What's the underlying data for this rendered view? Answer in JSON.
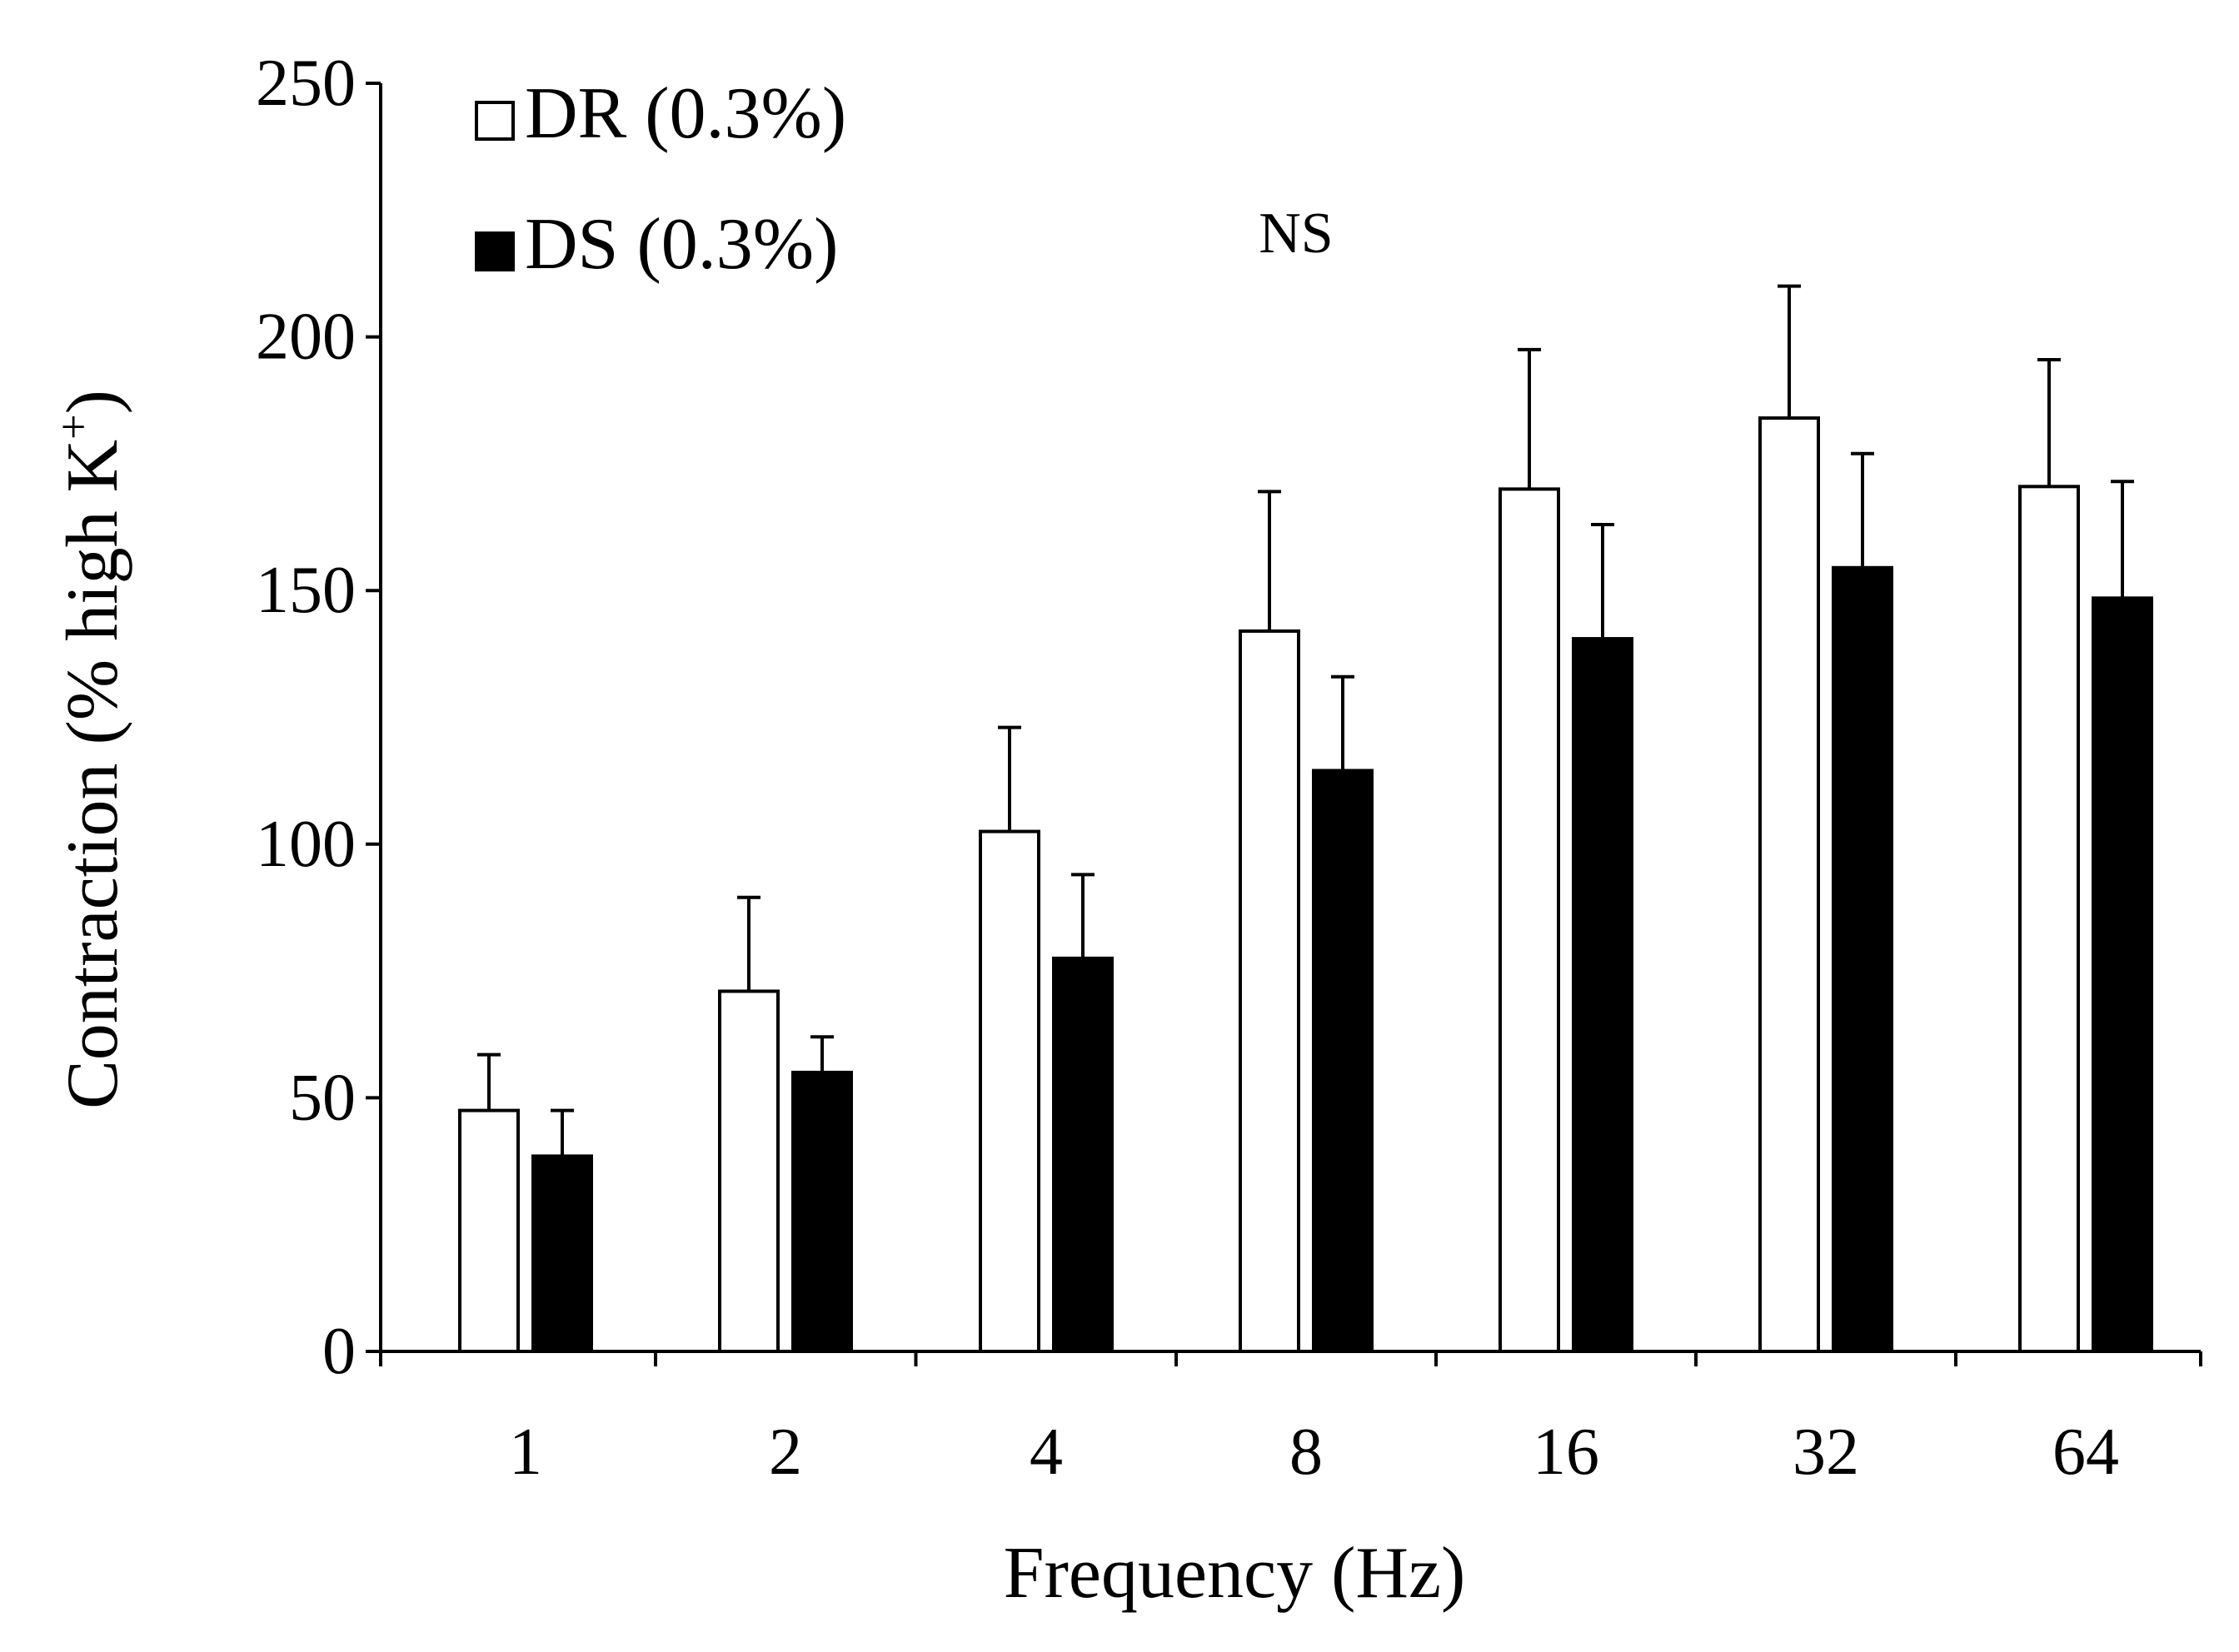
{
  "chart_data": {
    "type": "bar",
    "title": "",
    "annotation": "NS",
    "xlabel": "Frequency (Hz)",
    "ylabel_main": "Contraction (% high K",
    "ylabel_sup": "+",
    "ylabel_close": ")",
    "categories": [
      "1",
      "2",
      "4",
      "8",
      "16",
      "32",
      "64"
    ],
    "ylim": [
      0,
      250
    ],
    "yticks": [
      0,
      50,
      100,
      150,
      200,
      250
    ],
    "series": [
      {
        "name": "DR (0.3%)",
        "fill": "#ffffff",
        "stroke": "#000000",
        "values": [
          47.5,
          71,
          102.5,
          142,
          170,
          184,
          170.5
        ],
        "error": [
          11,
          18.5,
          20.5,
          27.5,
          27.5,
          26,
          25
        ]
      },
      {
        "name": "DS (0.3%)",
        "fill": "#000000",
        "stroke": "#000000",
        "values": [
          38.5,
          55,
          77.5,
          114.5,
          140.5,
          154.5,
          148.5
        ],
        "error": [
          9,
          7,
          16.5,
          18.5,
          22.5,
          22.5,
          23
        ]
      }
    ],
    "legend": {
      "placement": "top-left"
    },
    "grid": false
  }
}
